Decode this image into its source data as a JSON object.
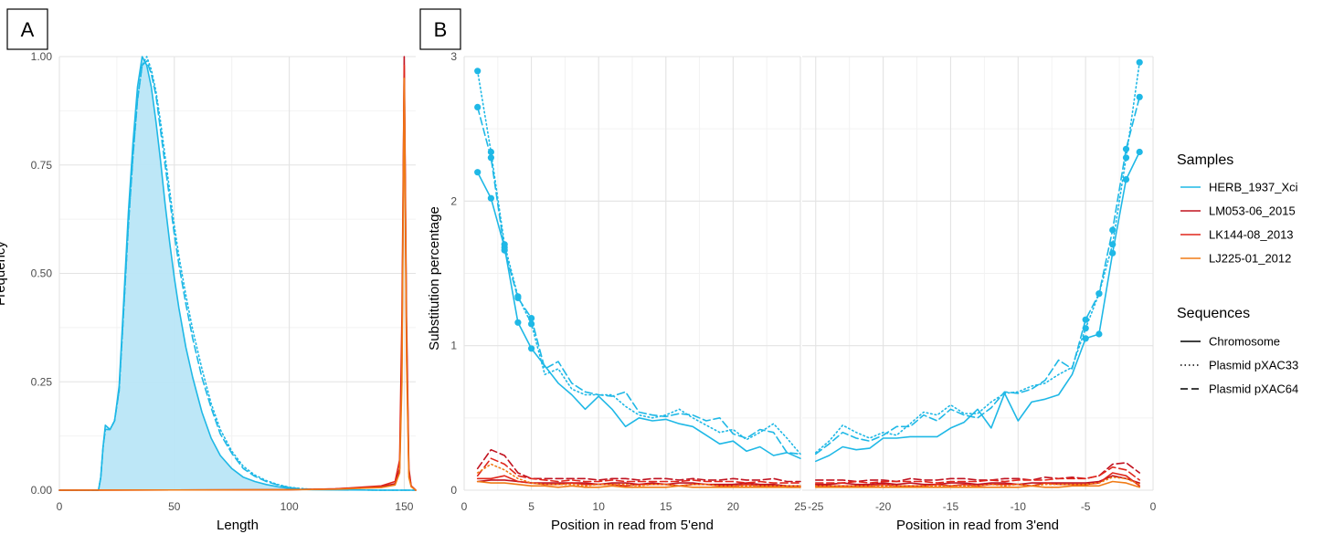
{
  "panels": {
    "a_label": "A",
    "b_label": "B"
  },
  "colors": {
    "HERB_1937_Xci": "#1fb8e6",
    "LM053-06_2015": "#c1121f",
    "LK144-08_2013": "#e0261b",
    "LJ225-01_2012": "#f07b16",
    "density_fill": "#b9e6f7"
  },
  "legend": {
    "samples_title": "Samples",
    "samples": [
      "HERB_1937_Xci",
      "LM053-06_2015",
      "LK144-08_2013",
      "LJ225-01_2012"
    ],
    "sequences_title": "Sequences",
    "sequences": [
      {
        "label": "Chromosome",
        "style": "solid"
      },
      {
        "label": "Plasmid pXAC33",
        "style": "dotted"
      },
      {
        "label": "Plasmid pXAC64",
        "style": "dashed"
      }
    ]
  },
  "chart_data": [
    {
      "type": "line",
      "panel": "A",
      "xlabel": "Length",
      "ylabel": "Frequency",
      "xlim": [
        0,
        155
      ],
      "ylim": [
        0,
        1
      ],
      "x_ticks": [
        0,
        50,
        100,
        150
      ],
      "y_ticks": [
        "0.00",
        "0.25",
        "0.50",
        "0.75",
        "1.00"
      ],
      "grid": true,
      "series": [
        {
          "name": "HERB_1937_Xci",
          "line": "solid",
          "filled": true,
          "x": [
            0,
            17,
            18,
            19,
            20,
            22,
            24,
            26,
            28,
            30,
            32,
            34,
            36,
            38,
            40,
            42,
            44,
            46,
            48,
            50,
            52,
            55,
            58,
            62,
            66,
            70,
            75,
            80,
            85,
            90,
            95,
            100,
            105,
            110,
            140,
            148,
            155
          ],
          "y": [
            0,
            0,
            0.03,
            0.1,
            0.15,
            0.14,
            0.16,
            0.24,
            0.44,
            0.64,
            0.8,
            0.93,
            1.0,
            0.98,
            0.93,
            0.85,
            0.76,
            0.66,
            0.57,
            0.49,
            0.42,
            0.33,
            0.26,
            0.18,
            0.12,
            0.08,
            0.05,
            0.03,
            0.02,
            0.013,
            0.008,
            0.004,
            0.002,
            0.001,
            0,
            0,
            0
          ]
        },
        {
          "name": "HERB_1937_Xci",
          "line": "dotted",
          "x": [
            0,
            17,
            18,
            19,
            20,
            22,
            24,
            26,
            28,
            30,
            32,
            34,
            36,
            38,
            40,
            42,
            44,
            46,
            48,
            50,
            52,
            55,
            58,
            62,
            66,
            70,
            75,
            80,
            85,
            90,
            95,
            100,
            105,
            110,
            140,
            148,
            155
          ],
          "y": [
            0,
            0,
            0.03,
            0.1,
            0.14,
            0.14,
            0.16,
            0.23,
            0.42,
            0.61,
            0.77,
            0.9,
            0.98,
            1.0,
            0.97,
            0.92,
            0.85,
            0.77,
            0.69,
            0.61,
            0.54,
            0.45,
            0.37,
            0.28,
            0.2,
            0.14,
            0.09,
            0.055,
            0.035,
            0.022,
            0.013,
            0.007,
            0.004,
            0.002,
            0,
            0,
            0
          ]
        },
        {
          "name": "HERB_1937_Xci",
          "line": "dashed",
          "x": [
            0,
            17,
            18,
            19,
            20,
            22,
            24,
            26,
            28,
            30,
            32,
            34,
            36,
            38,
            40,
            42,
            44,
            46,
            48,
            50,
            52,
            55,
            58,
            62,
            66,
            70,
            75,
            80,
            85,
            90,
            95,
            100,
            105,
            110,
            140,
            148,
            155
          ],
          "y": [
            0,
            0,
            0.03,
            0.1,
            0.14,
            0.14,
            0.16,
            0.23,
            0.42,
            0.61,
            0.77,
            0.9,
            0.98,
            0.99,
            0.96,
            0.91,
            0.83,
            0.75,
            0.67,
            0.59,
            0.52,
            0.43,
            0.35,
            0.26,
            0.19,
            0.13,
            0.085,
            0.05,
            0.032,
            0.02,
            0.012,
            0.006,
            0.003,
            0.002,
            0,
            0,
            0
          ]
        },
        {
          "name": "LM053-06_2015",
          "line": "solid",
          "x": [
            0,
            100,
            120,
            140,
            146,
            148,
            149,
            150,
            151,
            152,
            153,
            155
          ],
          "y": [
            0,
            0.001,
            0.003,
            0.008,
            0.015,
            0.05,
            0.3,
            1.0,
            0.4,
            0.05,
            0.01,
            0
          ]
        },
        {
          "name": "LK144-08_2013",
          "line": "solid",
          "x": [
            0,
            100,
            120,
            140,
            146,
            148,
            149,
            150,
            151,
            152,
            153,
            155
          ],
          "y": [
            0,
            0.001,
            0.003,
            0.01,
            0.02,
            0.07,
            0.4,
            0.98,
            0.35,
            0.04,
            0.01,
            0
          ]
        },
        {
          "name": "LJ225-01_2012",
          "line": "solid",
          "x": [
            0,
            100,
            120,
            140,
            146,
            148,
            149,
            150,
            151,
            152,
            153,
            155
          ],
          "y": [
            0,
            0.001,
            0.002,
            0.006,
            0.012,
            0.04,
            0.25,
            0.95,
            0.3,
            0.03,
            0.008,
            0
          ]
        }
      ]
    },
    {
      "type": "line",
      "panel": "B-left",
      "xlabel": "Position in read from 5'end",
      "ylabel": "Substitution percentage",
      "xlim": [
        0,
        25
      ],
      "ylim": [
        0,
        3
      ],
      "x_ticks": [
        0,
        5,
        10,
        15,
        20,
        25
      ],
      "y_ticks": [
        0,
        1,
        2,
        3
      ],
      "grid": true,
      "x": [
        1,
        2,
        3,
        4,
        5,
        6,
        7,
        8,
        9,
        10,
        11,
        12,
        13,
        14,
        15,
        16,
        17,
        18,
        19,
        20,
        21,
        22,
        23,
        24,
        25
      ],
      "markers_upto": 5,
      "series": [
        {
          "name": "HERB_1937_Xci",
          "line": "solid",
          "values": [
            2.2,
            2.02,
            1.68,
            1.16,
            0.98,
            0.86,
            0.74,
            0.66,
            0.56,
            0.65,
            0.56,
            0.44,
            0.5,
            0.48,
            0.49,
            0.46,
            0.44,
            0.38,
            0.32,
            0.34,
            0.27,
            0.3,
            0.24,
            0.26,
            0.22
          ]
        },
        {
          "name": "HERB_1937_Xci",
          "line": "dotted",
          "values": [
            2.9,
            2.34,
            1.7,
            1.34,
            1.15,
            0.8,
            0.84,
            0.7,
            0.66,
            0.66,
            0.66,
            0.58,
            0.52,
            0.5,
            0.52,
            0.56,
            0.5,
            0.45,
            0.4,
            0.42,
            0.35,
            0.4,
            0.46,
            0.36,
            0.25
          ]
        },
        {
          "name": "HERB_1937_Xci",
          "line": "dashed",
          "values": [
            2.65,
            2.3,
            1.66,
            1.33,
            1.19,
            0.84,
            0.89,
            0.74,
            0.68,
            0.66,
            0.65,
            0.68,
            0.54,
            0.52,
            0.51,
            0.53,
            0.52,
            0.48,
            0.5,
            0.39,
            0.36,
            0.42,
            0.4,
            0.26,
            0.25
          ]
        },
        {
          "name": "LM053-06_2015",
          "line": "solid",
          "values": [
            0.06,
            0.07,
            0.07,
            0.06,
            0.05,
            0.05,
            0.05,
            0.05,
            0.05,
            0.04,
            0.05,
            0.05,
            0.04,
            0.05,
            0.04,
            0.05,
            0.05,
            0.04,
            0.04,
            0.04,
            0.05,
            0.04,
            0.04,
            0.03,
            0.03
          ]
        },
        {
          "name": "LM053-06_2015",
          "line": "dashed",
          "values": [
            0.15,
            0.28,
            0.24,
            0.12,
            0.08,
            0.08,
            0.08,
            0.08,
            0.08,
            0.07,
            0.08,
            0.08,
            0.07,
            0.08,
            0.08,
            0.07,
            0.08,
            0.07,
            0.07,
            0.08,
            0.07,
            0.07,
            0.08,
            0.06,
            0.06
          ]
        },
        {
          "name": "LK144-08_2013",
          "line": "solid",
          "values": [
            0.08,
            0.08,
            0.1,
            0.06,
            0.05,
            0.04,
            0.04,
            0.05,
            0.04,
            0.04,
            0.04,
            0.03,
            0.04,
            0.04,
            0.04,
            0.03,
            0.04,
            0.04,
            0.03,
            0.03,
            0.04,
            0.03,
            0.03,
            0.02,
            0.02
          ]
        },
        {
          "name": "LK144-08_2013",
          "line": "dashed",
          "values": [
            0.1,
            0.22,
            0.18,
            0.1,
            0.08,
            0.07,
            0.06,
            0.07,
            0.06,
            0.06,
            0.07,
            0.06,
            0.06,
            0.06,
            0.06,
            0.06,
            0.07,
            0.06,
            0.06,
            0.06,
            0.05,
            0.06,
            0.05,
            0.05,
            0.05
          ]
        },
        {
          "name": "LJ225-01_2012",
          "line": "solid",
          "values": [
            0.06,
            0.05,
            0.05,
            0.04,
            0.03,
            0.03,
            0.02,
            0.03,
            0.02,
            0.02,
            0.03,
            0.02,
            0.02,
            0.02,
            0.02,
            0.03,
            0.02,
            0.02,
            0.02,
            0.02,
            0.02,
            0.02,
            0.02,
            0.02,
            0.02
          ]
        },
        {
          "name": "LJ225-01_2012",
          "line": "dotted",
          "values": [
            0.12,
            0.18,
            0.14,
            0.08,
            0.05,
            0.04,
            0.04,
            0.04,
            0.03,
            0.04,
            0.04,
            0.04,
            0.03,
            0.04,
            0.04,
            0.03,
            0.04,
            0.04,
            0.03,
            0.03,
            0.03,
            0.03,
            0.03,
            0.03,
            0.03
          ]
        }
      ]
    },
    {
      "type": "line",
      "panel": "B-right",
      "xlabel": "Position in read from 3'end",
      "ylabel": "",
      "xlim": [
        -26,
        0
      ],
      "ylim": [
        0,
        3
      ],
      "x_ticks": [
        -25,
        -20,
        -15,
        -10,
        -5,
        0
      ],
      "y_ticks": [
        0,
        1,
        2,
        3
      ],
      "grid": true,
      "x": [
        -25,
        -24,
        -23,
        -22,
        -21,
        -20,
        -19,
        -18,
        -17,
        -16,
        -15,
        -14,
        -13,
        -12,
        -11,
        -10,
        -9,
        -8,
        -7,
        -6,
        -5,
        -4,
        -3,
        -2,
        -1
      ],
      "markers_from": -5,
      "series": [
        {
          "name": "HERB_1937_Xci",
          "line": "solid",
          "values": [
            0.2,
            0.24,
            0.3,
            0.28,
            0.29,
            0.36,
            0.36,
            0.37,
            0.37,
            0.37,
            0.43,
            0.47,
            0.56,
            0.43,
            0.67,
            0.48,
            0.61,
            0.63,
            0.66,
            0.8,
            1.05,
            1.08,
            1.64,
            2.15,
            2.34
          ]
        },
        {
          "name": "HERB_1937_Xci",
          "line": "dotted",
          "values": [
            0.26,
            0.34,
            0.45,
            0.4,
            0.36,
            0.4,
            0.38,
            0.46,
            0.54,
            0.52,
            0.59,
            0.53,
            0.53,
            0.61,
            0.67,
            0.68,
            0.72,
            0.74,
            0.8,
            0.85,
            1.12,
            1.36,
            1.7,
            2.3,
            2.96
          ]
        },
        {
          "name": "HERB_1937_Xci",
          "line": "dashed",
          "values": [
            0.25,
            0.32,
            0.4,
            0.36,
            0.34,
            0.38,
            0.44,
            0.44,
            0.52,
            0.48,
            0.56,
            0.52,
            0.5,
            0.57,
            0.68,
            0.67,
            0.7,
            0.76,
            0.9,
            0.84,
            1.18,
            1.36,
            1.8,
            2.36,
            2.72
          ]
        },
        {
          "name": "LM053-06_2015",
          "line": "solid",
          "values": [
            0.04,
            0.04,
            0.05,
            0.04,
            0.04,
            0.05,
            0.04,
            0.05,
            0.04,
            0.04,
            0.05,
            0.05,
            0.04,
            0.05,
            0.05,
            0.04,
            0.05,
            0.05,
            0.05,
            0.05,
            0.05,
            0.06,
            0.1,
            0.08,
            0.05
          ]
        },
        {
          "name": "LM053-06_2015",
          "line": "dashed",
          "values": [
            0.07,
            0.07,
            0.07,
            0.06,
            0.07,
            0.07,
            0.06,
            0.08,
            0.07,
            0.07,
            0.08,
            0.08,
            0.07,
            0.07,
            0.08,
            0.08,
            0.07,
            0.09,
            0.08,
            0.09,
            0.08,
            0.1,
            0.18,
            0.19,
            0.12
          ]
        },
        {
          "name": "LK144-08_2013",
          "line": "solid",
          "values": [
            0.03,
            0.03,
            0.03,
            0.03,
            0.03,
            0.04,
            0.03,
            0.03,
            0.03,
            0.04,
            0.03,
            0.04,
            0.03,
            0.04,
            0.04,
            0.04,
            0.03,
            0.05,
            0.04,
            0.04,
            0.04,
            0.05,
            0.12,
            0.1,
            0.03
          ]
        },
        {
          "name": "LK144-08_2013",
          "line": "dashed",
          "values": [
            0.05,
            0.05,
            0.05,
            0.06,
            0.05,
            0.06,
            0.06,
            0.06,
            0.06,
            0.05,
            0.06,
            0.06,
            0.06,
            0.07,
            0.06,
            0.07,
            0.07,
            0.07,
            0.08,
            0.08,
            0.08,
            0.1,
            0.16,
            0.14,
            0.07
          ]
        },
        {
          "name": "LJ225-01_2012",
          "line": "solid",
          "values": [
            0.02,
            0.02,
            0.02,
            0.02,
            0.02,
            0.02,
            0.02,
            0.02,
            0.02,
            0.02,
            0.02,
            0.02,
            0.02,
            0.02,
            0.02,
            0.02,
            0.03,
            0.02,
            0.02,
            0.03,
            0.03,
            0.03,
            0.06,
            0.05,
            0.02
          ]
        },
        {
          "name": "LJ225-01_2012",
          "line": "dotted",
          "values": [
            0.03,
            0.03,
            0.03,
            0.03,
            0.03,
            0.03,
            0.03,
            0.03,
            0.03,
            0.03,
            0.03,
            0.03,
            0.03,
            0.04,
            0.03,
            0.04,
            0.03,
            0.04,
            0.04,
            0.04,
            0.04,
            0.05,
            0.09,
            0.08,
            0.04
          ]
        }
      ]
    }
  ]
}
